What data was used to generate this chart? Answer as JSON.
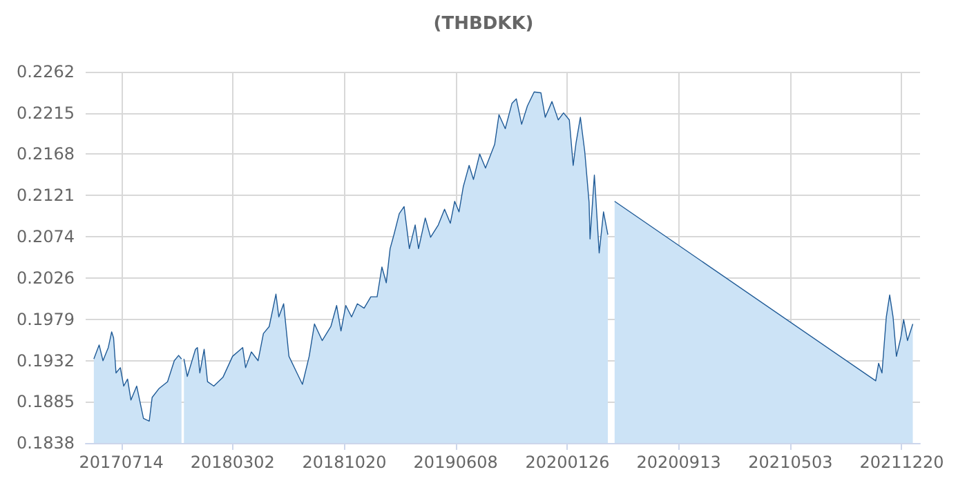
{
  "chart_data": {
    "type": "area",
    "title": "(THBDKK)",
    "x": [
      "2017-05-18",
      "2017-05-29",
      "2017-06-06",
      "2017-06-17",
      "2017-06-24",
      "2017-06-28",
      "2017-07-03",
      "2017-07-12",
      "2017-07-19",
      "2017-07-27",
      "2017-08-03",
      "2017-08-15",
      "2017-08-29",
      "2017-09-10",
      "2017-09-16",
      "2017-09-30",
      "2017-10-18",
      "2017-11-01",
      "2017-11-10",
      "2017-11-16",
      "2017-11-18",
      "2017-11-21",
      "2017-11-28",
      "2017-12-15",
      "2017-12-19",
      "2017-12-24",
      "2018-01-02",
      "2018-01-09",
      "2018-01-22",
      "2018-02-10",
      "2018-03-02",
      "2018-03-23",
      "2018-03-29",
      "2018-04-10",
      "2018-04-24",
      "2018-05-05",
      "2018-05-17",
      "2018-05-31",
      "2018-06-06",
      "2018-06-16",
      "2018-06-27",
      "2018-07-11",
      "2018-07-25",
      "2018-08-08",
      "2018-08-19",
      "2018-09-04",
      "2018-09-22",
      "2018-10-04",
      "2018-10-13",
      "2018-10-23",
      "2018-11-04",
      "2018-11-16",
      "2018-11-30",
      "2018-12-14",
      "2018-12-27",
      "2019-01-06",
      "2019-01-15",
      "2019-01-23",
      "2019-01-31",
      "2019-02-11",
      "2019-02-21",
      "2019-03-04",
      "2019-03-16",
      "2019-03-23",
      "2019-04-06",
      "2019-04-17",
      "2019-05-03",
      "2019-05-16",
      "2019-05-28",
      "2019-06-06",
      "2019-06-15",
      "2019-06-24",
      "2019-07-06",
      "2019-07-15",
      "2019-07-28",
      "2019-08-09",
      "2019-08-28",
      "2019-09-06",
      "2019-09-19",
      "2019-10-03",
      "2019-10-12",
      "2019-10-23",
      "2019-11-04",
      "2019-11-18",
      "2019-12-02",
      "2019-12-11",
      "2019-12-25",
      "2020-01-07",
      "2020-01-18",
      "2020-01-30",
      "2020-02-07",
      "2020-02-13",
      "2020-02-22",
      "2020-03-02",
      "2020-03-11",
      "2020-03-13",
      "2020-03-22",
      "2020-04-01",
      "2020-04-10",
      "2020-04-19",
      "2020-04-23",
      "2020-05-03",
      "2021-10-27",
      "2021-11-02",
      "2021-11-09",
      "2021-11-18",
      "2021-11-25",
      "2021-12-02",
      "2021-12-09",
      "2021-12-18",
      "2021-12-24",
      "2022-01-01",
      "2022-01-12"
    ],
    "series": [
      {
        "color": "#1f5a96",
        "values": [
          0.1934,
          0.195,
          0.1932,
          0.1947,
          0.1965,
          0.1958,
          0.1918,
          0.1924,
          0.1903,
          0.1911,
          0.1887,
          0.1903,
          0.1866,
          0.1863,
          0.189,
          0.19,
          0.1908,
          0.1932,
          0.1938,
          0.1934,
          null,
          0.1934,
          0.1914,
          0.1945,
          0.1947,
          0.1918,
          0.1945,
          0.1908,
          0.1903,
          0.1913,
          0.1937,
          0.1947,
          0.1924,
          0.1942,
          0.1932,
          0.1963,
          0.1971,
          0.2008,
          0.1982,
          0.1997,
          0.1937,
          0.1921,
          0.1905,
          0.1937,
          0.1974,
          0.1955,
          0.1971,
          0.1995,
          0.1966,
          0.1995,
          0.1982,
          0.1997,
          0.1992,
          0.2005,
          0.2005,
          0.2039,
          0.2021,
          0.206,
          0.2076,
          0.21,
          0.2108,
          0.206,
          0.2087,
          0.206,
          0.2095,
          0.2073,
          0.2087,
          0.2105,
          0.2089,
          0.2114,
          0.2102,
          0.2131,
          0.2155,
          0.2139,
          0.2168,
          0.2152,
          0.2179,
          0.2213,
          0.2197,
          0.2226,
          0.2231,
          0.2202,
          0.2223,
          0.2239,
          0.2238,
          0.221,
          0.2228,
          0.2207,
          0.2215,
          0.2207,
          0.2155,
          0.2181,
          0.221,
          0.2171,
          0.2113,
          0.2071,
          0.2144,
          0.2055,
          0.2102,
          0.2076,
          null,
          0.2114,
          0.1909,
          0.1929,
          0.1918,
          0.1982,
          0.2007,
          0.1982,
          0.1937,
          0.1958,
          0.1979,
          0.1955,
          0.1974
        ]
      }
    ],
    "xlim": [
      "2017-05-01",
      "2022-01-27"
    ],
    "xticks": [
      {
        "value": "2017-07-14",
        "label": "20170714"
      },
      {
        "value": "2018-03-02",
        "label": "20180302"
      },
      {
        "value": "2018-10-20",
        "label": "20181020"
      },
      {
        "value": "2019-06-08",
        "label": "20190608"
      },
      {
        "value": "2020-01-26",
        "label": "20200126"
      },
      {
        "value": "2020-09-13",
        "label": "20200913"
      },
      {
        "value": "2021-05-03",
        "label": "20210503"
      },
      {
        "value": "2021-12-20",
        "label": "20211220"
      }
    ],
    "ylim": [
      0.1838,
      0.2262
    ],
    "yticks": [
      0.1838,
      0.1885,
      0.1932,
      0.1979,
      0.2026,
      0.2074,
      0.2121,
      0.2168,
      0.2215,
      0.2262
    ],
    "grid": true,
    "marker": "none",
    "line_style": "solid"
  }
}
